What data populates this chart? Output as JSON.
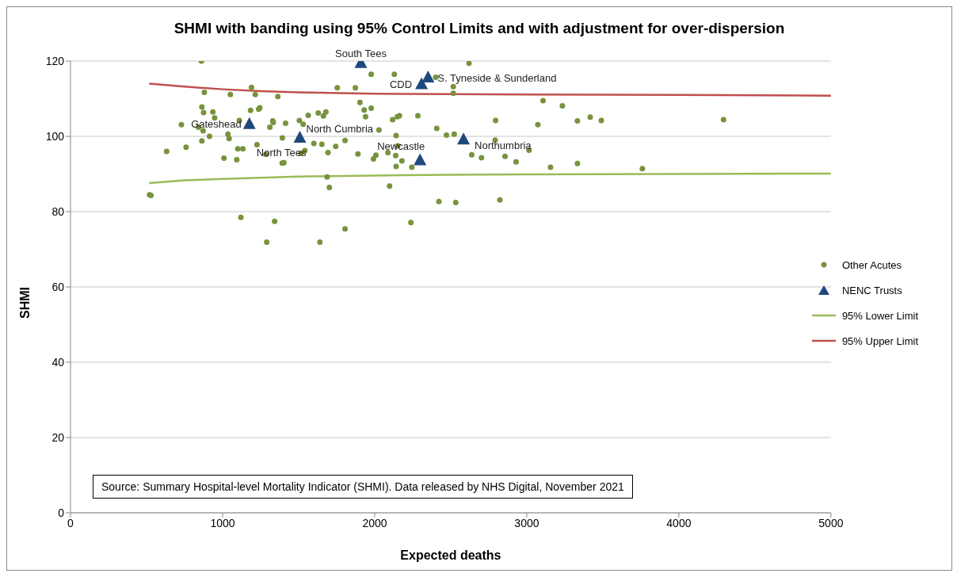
{
  "chart_data": {
    "type": "scatter",
    "title": "SHMI with banding using 95% Control Limits and with adjustment for over-dispersion",
    "xlabel": "Expected deaths",
    "ylabel": "SHMI",
    "xlim": [
      0,
      5000
    ],
    "xticks": [
      0,
      1000,
      2000,
      3000,
      4000,
      5000
    ],
    "ylim": [
      0,
      120
    ],
    "yticks": [
      0,
      20,
      40,
      60,
      80,
      100,
      120
    ],
    "grid": "y",
    "legend": "right",
    "series": [
      {
        "name": "Other Acutes",
        "marker": "circle",
        "color": "#77933c",
        "x": [
          861,
          1190,
          880,
          1051,
          1215,
          1363,
          1754,
          864,
          875,
          936,
          948,
          1184,
          1237,
          1245,
          729,
          841,
          872,
          914,
          864,
          632,
          760,
          1035,
          1043,
          1110,
          1100,
          1133,
          1009,
          1093,
          1330,
          1333,
          1311,
          1414,
          1226,
          1285,
          1393,
          1392,
          1403,
          1505,
          1530,
          1515,
          1541,
          1563,
          1629,
          1663,
          1679,
          1600,
          1653,
          1693,
          1744,
          1805,
          1687,
          1702,
          520,
          529,
          1120,
          1342,
          1290,
          1640,
          1805,
          1977,
          2129,
          2620,
          2401,
          2517,
          2517,
          1873,
          1903,
          1931,
          1977,
          1940,
          2118,
          2149,
          2163,
          2284,
          2028,
          2141,
          2152,
          1890,
          1992,
          2008,
          2087,
          2138,
          2179,
          2141,
          2244,
          2408,
          2472,
          2523,
          2795,
          2792,
          3073,
          3107,
          3234,
          2638,
          2702,
          2857,
          2930,
          3015,
          3156,
          2098,
          2422,
          2533,
          2823,
          2238,
          3333,
          3417,
          3490,
          4294,
          3333,
          3760
        ],
        "values": [
          120.0,
          113.0,
          111.7,
          111.1,
          111.1,
          110.6,
          112.9,
          107.8,
          106.3,
          106.5,
          104.9,
          106.9,
          107.2,
          107.6,
          103.1,
          102.4,
          101.5,
          100.0,
          98.8,
          96.0,
          97.1,
          100.6,
          99.4,
          104.2,
          96.7,
          96.7,
          94.2,
          93.8,
          104.1,
          103.7,
          102.4,
          103.5,
          97.8,
          95.2,
          99.6,
          92.9,
          93.0,
          104.2,
          103.2,
          95.5,
          96.2,
          105.6,
          106.2,
          105.4,
          106.5,
          98.1,
          97.9,
          95.7,
          97.3,
          98.9,
          89.2,
          86.4,
          84.5,
          84.3,
          78.5,
          77.4,
          71.9,
          71.9,
          75.4,
          116.5,
          116.5,
          119.4,
          115.7,
          113.2,
          111.4,
          112.9,
          109.0,
          107.0,
          107.5,
          105.2,
          104.4,
          105.2,
          105.5,
          105.5,
          101.7,
          100.2,
          97.5,
          95.3,
          94.0,
          95.0,
          95.7,
          94.9,
          93.5,
          92.0,
          91.8,
          102.1,
          100.3,
          100.6,
          104.2,
          99.0,
          103.1,
          109.5,
          108.1,
          95.1,
          94.3,
          94.7,
          93.2,
          96.3,
          91.8,
          86.8,
          82.7,
          82.4,
          83.1,
          77.1,
          104.1,
          105.1,
          104.2,
          104.4,
          92.8,
          91.4
        ]
      },
      {
        "name": "NENC Trusts",
        "marker": "triangle",
        "color": "#1f497d",
        "x": [
          1909,
          2308,
          2351,
          1176,
          1508,
          2298,
          2584
        ],
        "values": [
          119.4,
          113.8,
          115.6,
          103.2,
          99.6,
          93.6,
          99.1
        ]
      },
      {
        "name": "95% Lower Limit",
        "type": "line",
        "marker": "none",
        "color": "#9bbb59",
        "x": [
          517,
          750,
          1000,
          1250,
          1500,
          2000,
          2500,
          3000,
          4000,
          5000
        ],
        "values": [
          87.6,
          88.3,
          88.7,
          89.0,
          89.3,
          89.6,
          89.8,
          89.9,
          90.0,
          90.1
        ]
      },
      {
        "name": "95% Upper Limit",
        "type": "line",
        "marker": "none",
        "color": "#c0504d",
        "x": [
          517,
          750,
          1000,
          1250,
          1500,
          2000,
          2500,
          3000,
          4000,
          5000
        ],
        "values": [
          114.0,
          113.2,
          112.5,
          112.0,
          111.7,
          111.3,
          111.2,
          111.1,
          111.0,
          110.8
        ]
      }
    ],
    "annotations": [
      {
        "text": "South Tees",
        "x": 1909,
        "y": 119.4
      },
      {
        "text": "CDD",
        "x": 2308,
        "y": 113.8
      },
      {
        "text": "S. Tyneside & Sunderland",
        "x": 2351,
        "y": 115.6
      },
      {
        "text": "Gateshead",
        "x": 1176,
        "y": 103.2
      },
      {
        "text": "North Cumbria",
        "x": 1508,
        "y": 99.6
      },
      {
        "text": "North Tees",
        "x": 1508,
        "y": 99.6
      },
      {
        "text": "Newcastle",
        "x": 2298,
        "y": 93.6
      },
      {
        "text": "Northumbria",
        "x": 2584,
        "y": 99.1
      },
      "Source: Summary Hospital-level Mortality Indicator (SHMI). Data released by NHS Digital, November 2021"
    ]
  }
}
